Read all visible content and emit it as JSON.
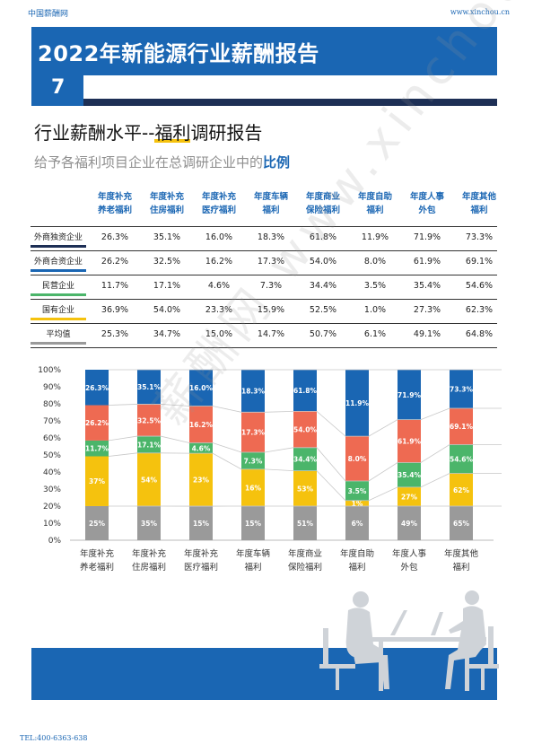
{
  "header": {
    "site_name": "中国薪酬网",
    "site_url": "www.xinchou.cn"
  },
  "banner": {
    "title": "2022年新能源行业薪酬报告",
    "page_number": "7"
  },
  "section": {
    "title_part1": "行业薪酬水平--",
    "title_highlight": "福利",
    "title_part2": "调研报告",
    "subtitle_part1": "给予各福利项目企业在总调研企业中的",
    "subtitle_bold": "比例"
  },
  "table": {
    "columns": [
      {
        "line1": "年度补充",
        "line2": "养老福利"
      },
      {
        "line1": "年度补充",
        "line2": "住房福利"
      },
      {
        "line1": "年度补充",
        "line2": "医疗福利"
      },
      {
        "line1": "年度车辆",
        "line2": "福利"
      },
      {
        "line1": "年度商业",
        "line2": "保险福利"
      },
      {
        "line1": "年度自助",
        "line2": "福利"
      },
      {
        "line1": "年度人事",
        "line2": "外包"
      },
      {
        "line1": "年度其他",
        "line2": "福利"
      }
    ],
    "rows": [
      {
        "label": "外商独资企业",
        "values": [
          "26.3%",
          "35.1%",
          "16.0%",
          "18.3%",
          "61.8%",
          "11.9%",
          "71.9%",
          "73.3%"
        ]
      },
      {
        "label": "外商合资企业",
        "values": [
          "26.2%",
          "32.5%",
          "16.2%",
          "17.3%",
          "54.0%",
          "8.0%",
          "61.9%",
          "69.1%"
        ]
      },
      {
        "label": "民营企业",
        "values": [
          "11.7%",
          "17.1%",
          "4.6%",
          "7.3%",
          "34.4%",
          "3.5%",
          "35.4%",
          "54.6%"
        ]
      },
      {
        "label": "国有企业",
        "values": [
          "36.9%",
          "54.0%",
          "23.3%",
          "15.9%",
          "52.5%",
          "1.0%",
          "27.3%",
          "62.3%"
        ]
      },
      {
        "label": "平均值",
        "values": [
          "25.3%",
          "34.7%",
          "15.0%",
          "14.7%",
          "50.7%",
          "6.1%",
          "49.1%",
          "64.8%"
        ]
      }
    ]
  },
  "chart_data": {
    "type": "bar",
    "stacked": "percent",
    "categories": [
      "年度补充\n养老福利",
      "年度补充\n住房福利",
      "年度补充\n医疗福利",
      "年度车辆\n福利",
      "年度商业\n保险福利",
      "年度自助\n福利",
      "年度人事\n外包",
      "年度其他\n福利"
    ],
    "y_ticks": [
      "0%",
      "10%",
      "20%",
      "30%",
      "40%",
      "50%",
      "60%",
      "70%",
      "80%",
      "90%",
      "100%"
    ],
    "ylim": [
      0,
      100
    ],
    "series": [
      {
        "values": [
          25.3,
          34.7,
          15.0,
          14.7,
          50.7,
          6.1,
          49.1,
          64.8
        ],
        "labels": [
          "25%",
          "35%",
          "15%",
          "15%",
          "51%",
          "6%",
          "49%",
          "65%"
        ],
        "color": "#9a9a9a"
      },
      {
        "values": [
          36.9,
          54.0,
          23.3,
          15.9,
          52.5,
          1.0,
          27.3,
          62.3
        ],
        "labels": [
          "37%",
          "54%",
          "23%",
          "16%",
          "53%",
          "1%",
          "27%",
          "62%"
        ],
        "color": "#f5c20e"
      },
      {
        "values": [
          11.7,
          17.1,
          4.6,
          7.3,
          34.4,
          3.5,
          35.4,
          54.6
        ],
        "labels": [
          "11.7%",
          "17.1%",
          "4.6%",
          "7.3%",
          "34.4%",
          "3.5%",
          "35.4%",
          "54.6%"
        ],
        "color": "#4bb56a"
      },
      {
        "values": [
          26.2,
          32.5,
          16.2,
          17.3,
          54.0,
          8.0,
          61.9,
          69.1
        ],
        "labels": [
          "26.2%",
          "32.5%",
          "16.2%",
          "17.3%",
          "54.0%",
          "8.0%",
          "61.9%",
          "69.1%"
        ],
        "color": "#ee6a52"
      },
      {
        "values": [
          26.3,
          35.1,
          16.0,
          18.3,
          61.8,
          11.9,
          71.9,
          73.3
        ],
        "labels": [
          "26.3%",
          "35.1%",
          "16.0%",
          "18.3%",
          "61.8%",
          "11.9%",
          "71.9%",
          "73.3%"
        ],
        "color": "#1a66b3"
      }
    ],
    "grid": false,
    "legend": "none"
  },
  "watermark": "薪酬网 www.xinchou.cn",
  "footer": {
    "tel": "TEL:400-6363-638"
  }
}
